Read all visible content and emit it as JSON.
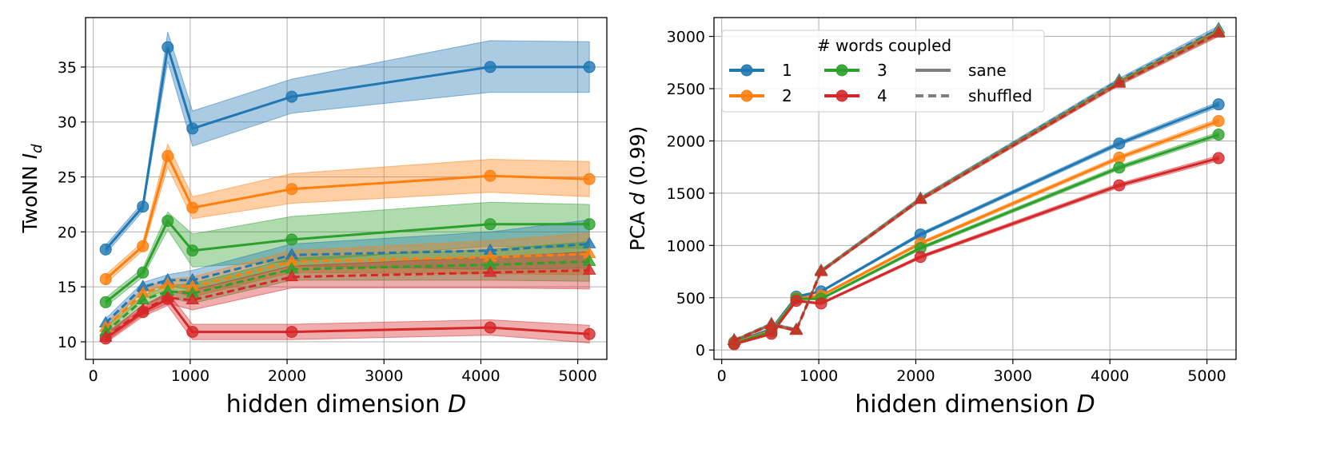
{
  "colors": {
    "w1": "#1f77b4",
    "w2": "#ff7f0e",
    "w3": "#2ca02c",
    "w4": "#d62728",
    "style": "#7f7f7f"
  },
  "chart_data": [
    {
      "type": "line",
      "xlabel_main": "hidden dimension ",
      "xlabel_sym": "D",
      "ylabel_main": "TwoNN ",
      "ylabel_sym": "I",
      "ylabel_sub": "d",
      "xlim": [
        -80,
        5300
      ],
      "ylim": [
        8.4,
        39.5
      ],
      "xticks": [
        0,
        1000,
        2000,
        3000,
        4000,
        5000
      ],
      "yticks": [
        10,
        15,
        20,
        25,
        30,
        35
      ],
      "grid": true,
      "x": [
        128,
        512,
        768,
        1024,
        2048,
        4096,
        5120
      ],
      "series": [
        {
          "name": "1",
          "style": "sane",
          "color_key": "w1",
          "values": [
            18.4,
            22.3,
            36.8,
            29.4,
            32.3,
            35.0,
            35.0
          ],
          "lower": [
            18.0,
            21.9,
            35.5,
            27.8,
            30.8,
            32.7,
            32.7
          ],
          "upper": [
            18.8,
            22.7,
            38.2,
            31.0,
            33.9,
            37.4,
            37.3
          ]
        },
        {
          "name": "2",
          "style": "sane",
          "color_key": "w2",
          "values": [
            15.7,
            18.7,
            26.9,
            22.2,
            23.9,
            25.1,
            24.8
          ],
          "lower": [
            15.3,
            18.3,
            25.9,
            21.2,
            22.6,
            23.6,
            23.2
          ],
          "upper": [
            16.1,
            19.1,
            28.0,
            23.2,
            25.3,
            26.6,
            26.4
          ]
        },
        {
          "name": "3",
          "style": "sane",
          "color_key": "w3",
          "values": [
            13.6,
            16.3,
            21.0,
            18.3,
            19.3,
            20.7,
            20.7
          ],
          "lower": [
            13.2,
            15.9,
            20.2,
            16.8,
            17.3,
            18.7,
            18.5
          ],
          "upper": [
            14.0,
            16.7,
            21.8,
            19.8,
            21.4,
            22.7,
            22.5
          ]
        },
        {
          "name": "4",
          "style": "sane",
          "color_key": "w4",
          "values": [
            10.3,
            12.7,
            13.9,
            10.9,
            10.9,
            11.3,
            10.7
          ],
          "lower": [
            9.9,
            12.3,
            13.3,
            10.2,
            10.2,
            10.6,
            9.9
          ],
          "upper": [
            10.7,
            13.1,
            14.5,
            11.6,
            11.6,
            12.0,
            11.5
          ]
        },
        {
          "name": "1",
          "style": "shuffled",
          "color_key": "w1",
          "values": [
            11.7,
            15.0,
            15.6,
            15.6,
            17.9,
            18.3,
            18.9
          ],
          "lower": [
            11.3,
            14.6,
            15.1,
            14.7,
            16.9,
            16.6,
            16.7
          ],
          "upper": [
            12.1,
            15.4,
            16.1,
            16.5,
            18.9,
            20.0,
            21.1
          ]
        },
        {
          "name": "2",
          "style": "shuffled",
          "color_key": "w2",
          "values": [
            11.3,
            14.4,
            15.2,
            15.0,
            17.3,
            17.7,
            18.0
          ],
          "lower": [
            10.9,
            14.0,
            14.7,
            14.1,
            16.3,
            16.2,
            16.1
          ],
          "upper": [
            11.7,
            14.8,
            15.7,
            15.9,
            18.3,
            19.2,
            19.9
          ]
        },
        {
          "name": "3",
          "style": "shuffled",
          "color_key": "w3",
          "values": [
            10.9,
            13.8,
            14.6,
            14.4,
            16.6,
            17.0,
            17.3
          ],
          "lower": [
            10.5,
            13.4,
            14.1,
            13.5,
            15.6,
            15.6,
            15.5
          ],
          "upper": [
            11.3,
            14.2,
            15.1,
            15.3,
            17.6,
            18.4,
            19.1
          ]
        },
        {
          "name": "4",
          "style": "shuffled",
          "color_key": "w4",
          "values": [
            10.4,
            12.9,
            14.0,
            13.8,
            15.9,
            16.3,
            16.5
          ],
          "lower": [
            10.0,
            12.5,
            13.5,
            12.9,
            14.9,
            14.9,
            14.8
          ],
          "upper": [
            10.8,
            13.3,
            14.5,
            14.7,
            16.9,
            17.7,
            18.2
          ]
        }
      ]
    },
    {
      "type": "line",
      "xlabel_main": "hidden dimension ",
      "xlabel_sym": "D",
      "ylabel_main": "PCA ",
      "ylabel_sym": "d",
      "ylabel_tail": " (0.99)",
      "xlim": [
        -80,
        5300
      ],
      "ylim": [
        -90,
        3180
      ],
      "xticks": [
        0,
        1000,
        2000,
        3000,
        4000,
        5000
      ],
      "yticks": [
        0,
        500,
        1000,
        1500,
        2000,
        2500,
        3000
      ],
      "grid": true,
      "x": [
        128,
        512,
        768,
        1024,
        2048,
        4096,
        5120
      ],
      "legend": {
        "title": "# words coupled",
        "placement": "upper left",
        "col1": [
          "1",
          "2"
        ],
        "col2": [
          "3",
          "4"
        ],
        "styles": [
          "sane",
          "shuffled"
        ]
      },
      "series": [
        {
          "name": "1",
          "style": "sane",
          "color_key": "w1",
          "values": [
            75,
            200,
            510,
            560,
            1105,
            1975,
            2350
          ],
          "lower": [
            70,
            190,
            500,
            550,
            1090,
            1955,
            2325
          ],
          "upper": [
            80,
            210,
            520,
            570,
            1120,
            1995,
            2375
          ]
        },
        {
          "name": "2",
          "style": "sane",
          "color_key": "w2",
          "values": [
            70,
            185,
            495,
            520,
            1020,
            1840,
            2190
          ],
          "lower": [
            65,
            175,
            485,
            510,
            1005,
            1820,
            2165
          ],
          "upper": [
            75,
            195,
            505,
            530,
            1035,
            1860,
            2215
          ]
        },
        {
          "name": "3",
          "style": "sane",
          "color_key": "w3",
          "values": [
            65,
            175,
            490,
            490,
            975,
            1745,
            2060
          ],
          "lower": [
            60,
            165,
            480,
            480,
            960,
            1725,
            2035
          ],
          "upper": [
            70,
            185,
            500,
            500,
            990,
            1765,
            2085
          ]
        },
        {
          "name": "4",
          "style": "sane",
          "color_key": "w4",
          "values": [
            55,
            155,
            470,
            445,
            890,
            1575,
            1835
          ],
          "lower": [
            50,
            145,
            460,
            435,
            875,
            1555,
            1810
          ],
          "upper": [
            60,
            165,
            480,
            455,
            905,
            1595,
            1860
          ]
        },
        {
          "name": "1",
          "style": "shuffled",
          "color_key": "w1",
          "values": [
            95,
            250,
            195,
            760,
            1450,
            2580,
            3070
          ],
          "lower": [
            90,
            240,
            185,
            750,
            1435,
            2560,
            3040
          ],
          "upper": [
            100,
            260,
            205,
            770,
            1465,
            2600,
            3100
          ]
        },
        {
          "name": "2",
          "style": "shuffled",
          "color_key": "w2",
          "values": [
            92,
            245,
            190,
            755,
            1445,
            2565,
            3050
          ],
          "lower": [
            87,
            235,
            180,
            745,
            1430,
            2545,
            3020
          ],
          "upper": [
            97,
            255,
            200,
            765,
            1460,
            2585,
            3080
          ]
        },
        {
          "name": "3",
          "style": "shuffled",
          "color_key": "w3",
          "values": [
            90,
            242,
            188,
            752,
            1442,
            2560,
            3040
          ],
          "lower": [
            85,
            232,
            178,
            742,
            1427,
            2540,
            3010
          ],
          "upper": [
            95,
            252,
            198,
            762,
            1457,
            2580,
            3070
          ]
        },
        {
          "name": "4",
          "style": "shuffled",
          "color_key": "w4",
          "values": [
            88,
            240,
            185,
            748,
            1438,
            2550,
            3030
          ],
          "lower": [
            83,
            230,
            175,
            738,
            1423,
            2530,
            3000
          ],
          "upper": [
            93,
            250,
            195,
            758,
            1453,
            2570,
            3060
          ]
        }
      ]
    }
  ]
}
